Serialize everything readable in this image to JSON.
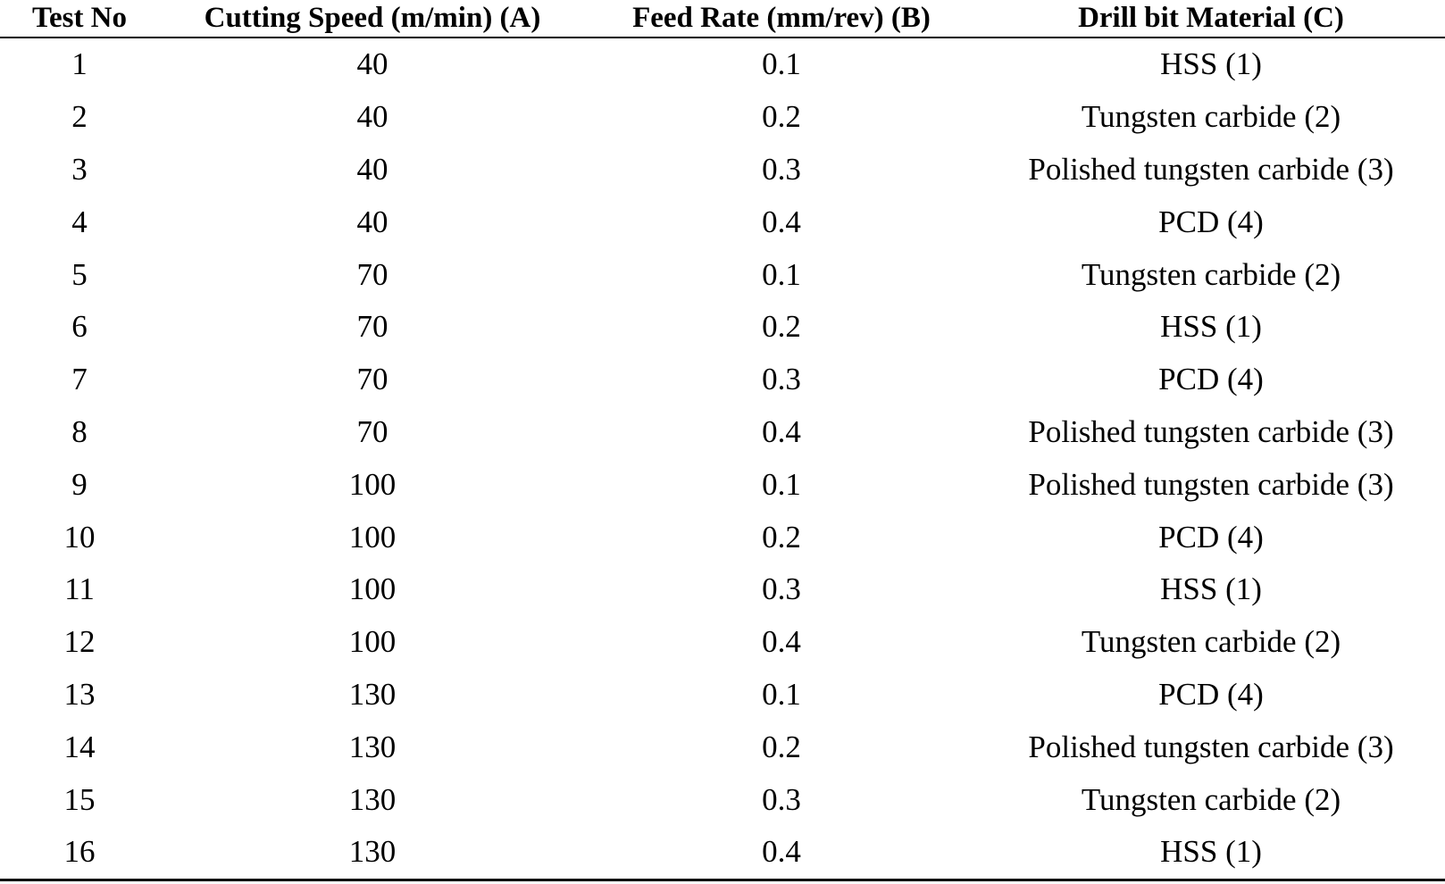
{
  "page": {
    "background_color": "#ffffff",
    "text_color": "#000000",
    "rule_color": "#000000"
  },
  "table": {
    "description": "Taguchi L16 experimental design table for drilling tests",
    "columns": [
      {
        "label": "Test No"
      },
      {
        "label": "Cutting Speed (m/min) (A)"
      },
      {
        "label": "Feed Rate (mm/rev) (B)"
      },
      {
        "label": "Drill bit Material (C)"
      }
    ],
    "rows": [
      {
        "test_no": "1",
        "cutting_speed": "40",
        "feed_rate": "0.1",
        "drill_bit_material": "HSS (1)"
      },
      {
        "test_no": "2",
        "cutting_speed": "40",
        "feed_rate": "0.2",
        "drill_bit_material": "Tungsten carbide (2)"
      },
      {
        "test_no": "3",
        "cutting_speed": "40",
        "feed_rate": "0.3",
        "drill_bit_material": "Polished tungsten carbide (3)"
      },
      {
        "test_no": "4",
        "cutting_speed": "40",
        "feed_rate": "0.4",
        "drill_bit_material": "PCD (4)"
      },
      {
        "test_no": "5",
        "cutting_speed": "70",
        "feed_rate": "0.1",
        "drill_bit_material": "Tungsten carbide (2)"
      },
      {
        "test_no": "6",
        "cutting_speed": "70",
        "feed_rate": "0.2",
        "drill_bit_material": "HSS (1)"
      },
      {
        "test_no": "7",
        "cutting_speed": "70",
        "feed_rate": "0.3",
        "drill_bit_material": "PCD (4)"
      },
      {
        "test_no": "8",
        "cutting_speed": "70",
        "feed_rate": "0.4",
        "drill_bit_material": "Polished tungsten carbide (3)"
      },
      {
        "test_no": "9",
        "cutting_speed": "100",
        "feed_rate": "0.1",
        "drill_bit_material": "Polished tungsten carbide (3)"
      },
      {
        "test_no": "10",
        "cutting_speed": "100",
        "feed_rate": "0.2",
        "drill_bit_material": "PCD (4)"
      },
      {
        "test_no": "11",
        "cutting_speed": "100",
        "feed_rate": "0.3",
        "drill_bit_material": "HSS (1)"
      },
      {
        "test_no": "12",
        "cutting_speed": "100",
        "feed_rate": "0.4",
        "drill_bit_material": "Tungsten carbide (2)"
      },
      {
        "test_no": "13",
        "cutting_speed": "130",
        "feed_rate": "0.1",
        "drill_bit_material": "PCD (4)"
      },
      {
        "test_no": "14",
        "cutting_speed": "130",
        "feed_rate": "0.2",
        "drill_bit_material": "Polished tungsten carbide (3)"
      },
      {
        "test_no": "15",
        "cutting_speed": "130",
        "feed_rate": "0.3",
        "drill_bit_material": "Tungsten carbide (2)"
      },
      {
        "test_no": "16",
        "cutting_speed": "130",
        "feed_rate": "0.4",
        "drill_bit_material": "HSS (1)"
      }
    ]
  },
  "chart_data": {
    "type": "table",
    "columns": [
      "Test No",
      "Cutting Speed (m/min) (A)",
      "Feed Rate (mm/rev) (B)",
      "Drill bit Material (C)"
    ],
    "rows": [
      [
        "1",
        "40",
        "0.1",
        "HSS (1)"
      ],
      [
        "2",
        "40",
        "0.2",
        "Tungsten carbide (2)"
      ],
      [
        "3",
        "40",
        "0.3",
        "Polished tungsten carbide (3)"
      ],
      [
        "4",
        "40",
        "0.4",
        "PCD (4)"
      ],
      [
        "5",
        "70",
        "0.1",
        "Tungsten carbide (2)"
      ],
      [
        "6",
        "70",
        "0.2",
        "HSS (1)"
      ],
      [
        "7",
        "70",
        "0.3",
        "PCD (4)"
      ],
      [
        "8",
        "70",
        "0.4",
        "Polished tungsten carbide (3)"
      ],
      [
        "9",
        "100",
        "0.1",
        "Polished tungsten carbide (3)"
      ],
      [
        "10",
        "100",
        "0.2",
        "PCD (4)"
      ],
      [
        "11",
        "100",
        "0.3",
        "HSS (1)"
      ],
      [
        "12",
        "100",
        "0.4",
        "Tungsten carbide (2)"
      ],
      [
        "13",
        "130",
        "0.1",
        "PCD (4)"
      ],
      [
        "14",
        "130",
        "0.2",
        "Polished tungsten carbide (3)"
      ],
      [
        "15",
        "130",
        "0.3",
        "Tungsten carbide (2)"
      ],
      [
        "16",
        "130",
        "0.4",
        "HSS (1)"
      ]
    ]
  }
}
